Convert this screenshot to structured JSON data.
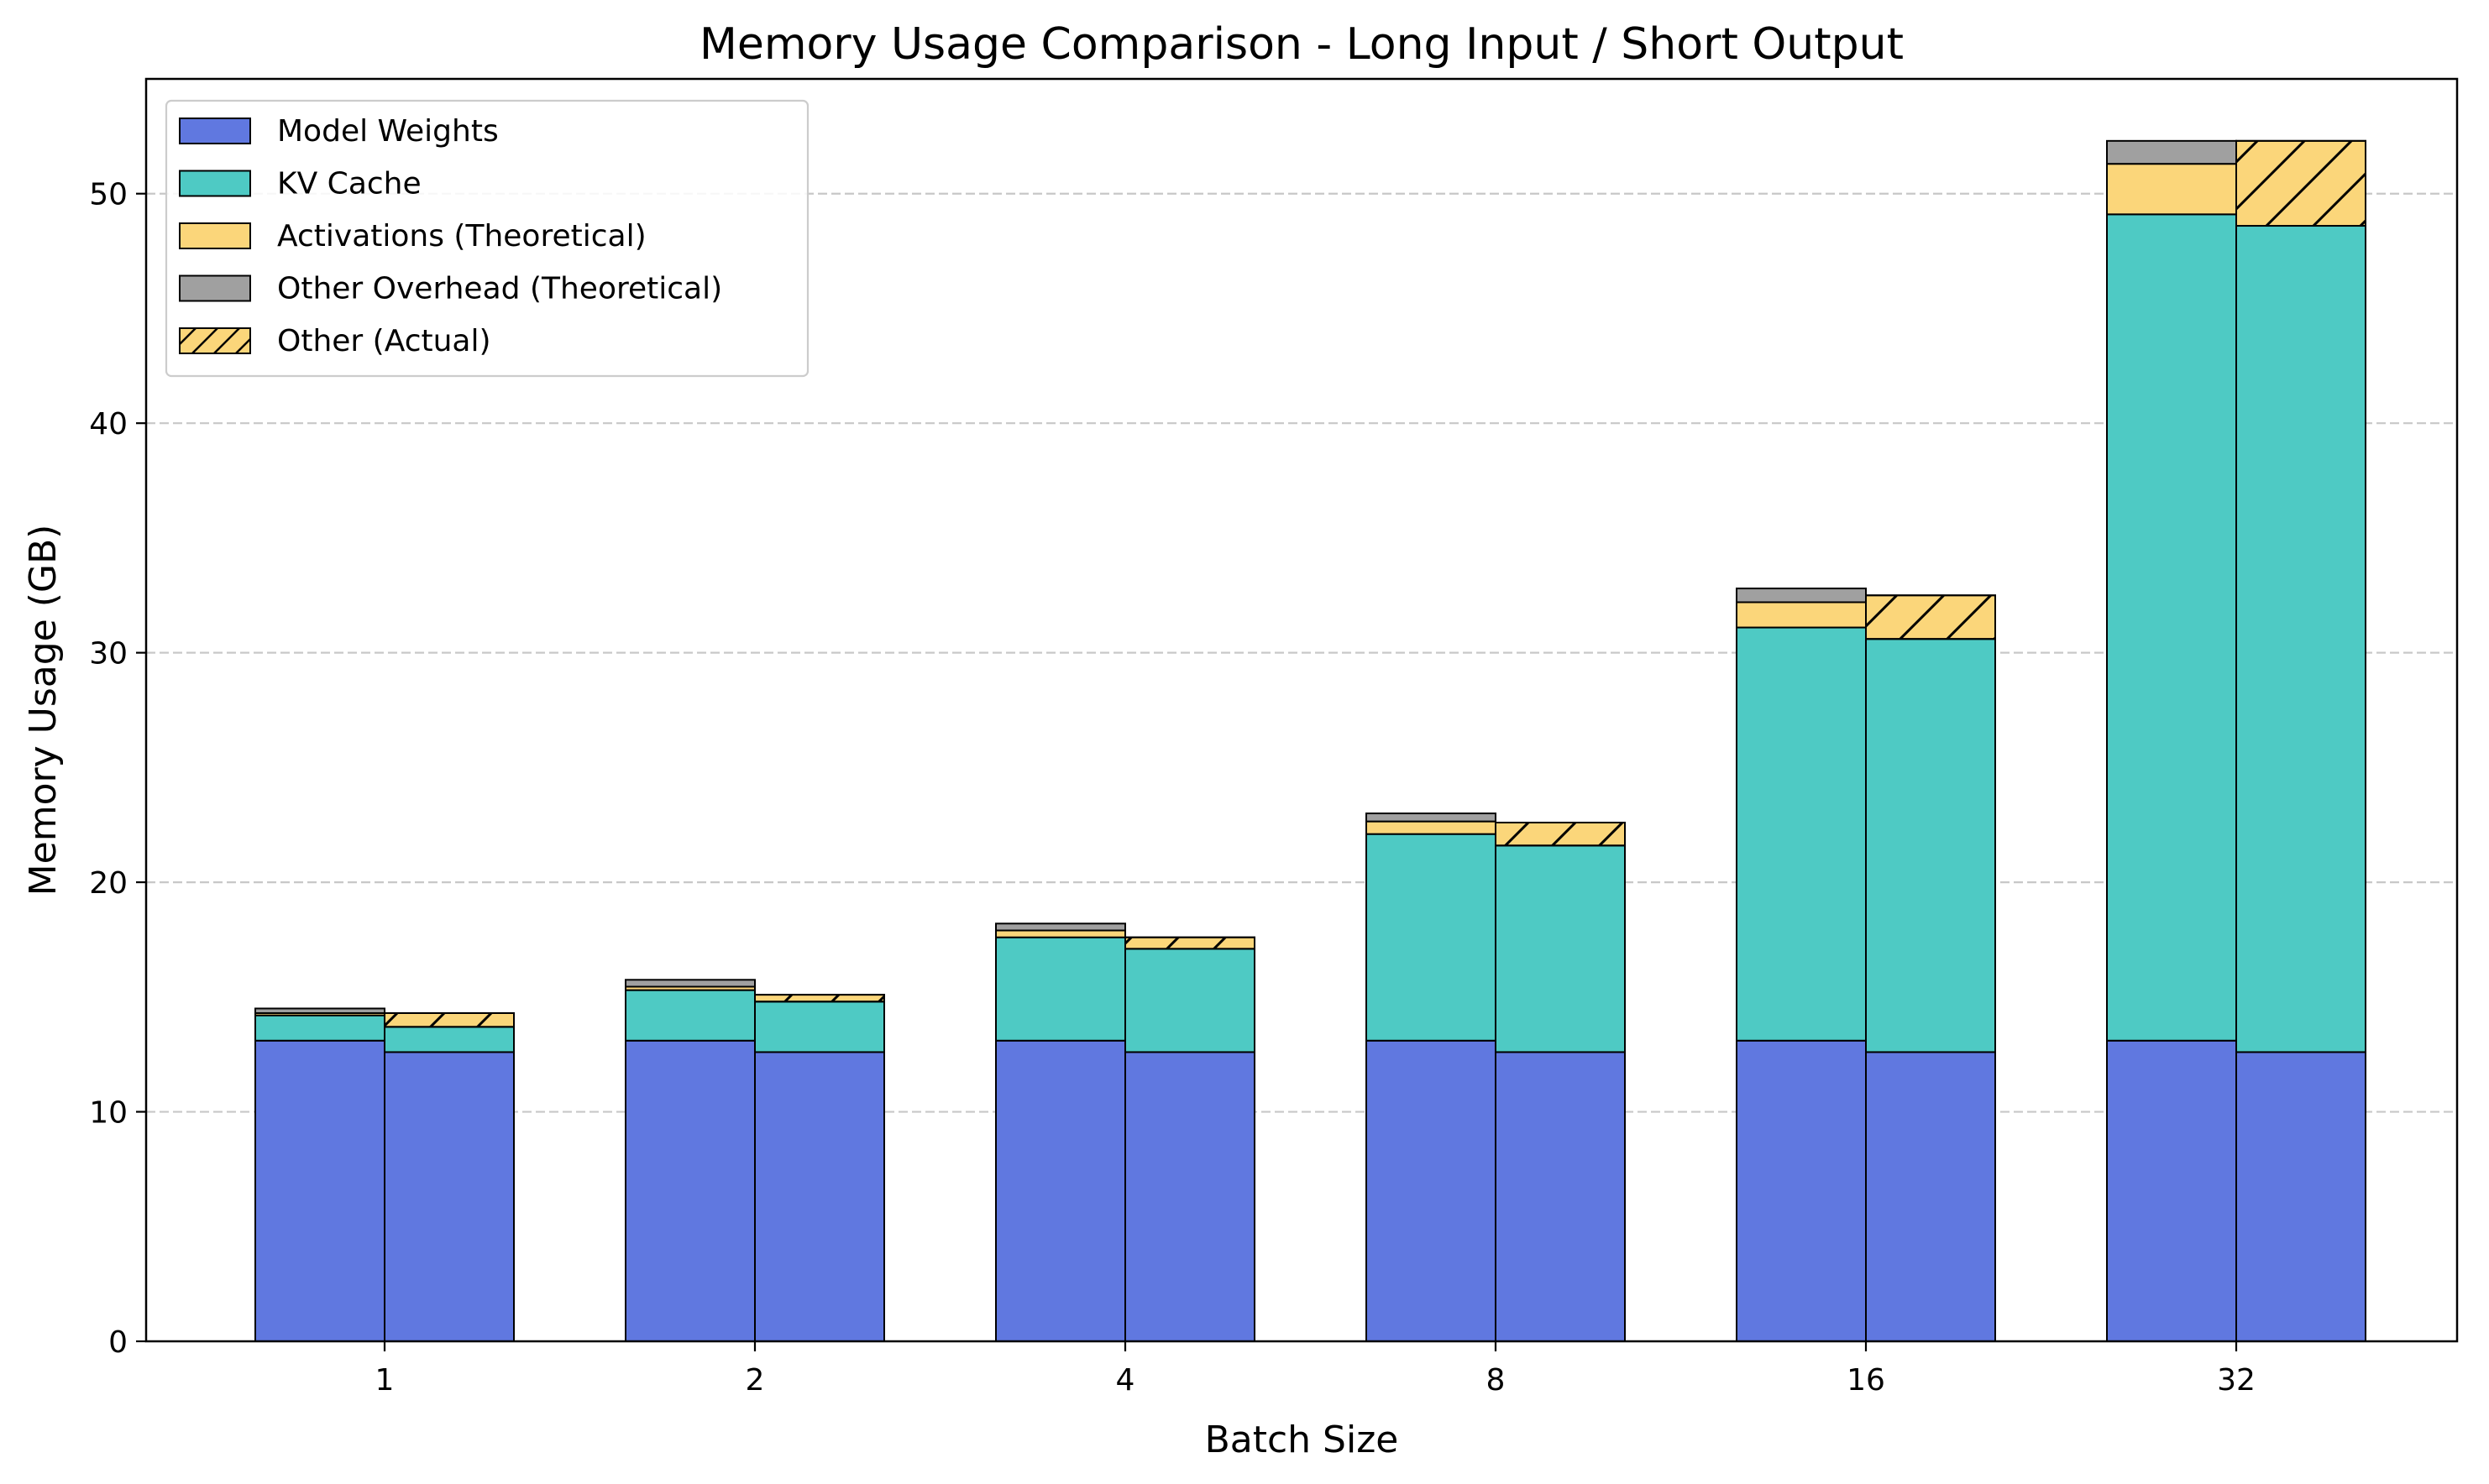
{
  "chart_data": {
    "type": "bar",
    "stacked": true,
    "grouped": true,
    "title": "Memory Usage Comparison - Long Input / Short Output",
    "xlabel": "Batch Size",
    "ylabel": "Memory Usage (GB)",
    "categories": [
      "1",
      "2",
      "4",
      "8",
      "16",
      "32"
    ],
    "ylim": [
      0,
      55
    ],
    "yticks": [
      0,
      10,
      20,
      30,
      40,
      50
    ],
    "grid": "y-dashed",
    "legend_position": "top-left",
    "legend": [
      {
        "label": "Model Weights",
        "color": "#6078E0",
        "hatch": false
      },
      {
        "label": "KV Cache",
        "color": "#4ECAC4",
        "hatch": false
      },
      {
        "label": "Activations (Theoretical)",
        "color": "#FBD67A",
        "hatch": false
      },
      {
        "label": "Other Overhead (Theoretical)",
        "color": "#A0A0A0",
        "hatch": false
      },
      {
        "label": "Other (Actual)",
        "color": "#FBD67A",
        "hatch": true
      }
    ],
    "theoretical": {
      "model_weights": [
        13.1,
        13.1,
        13.1,
        13.1,
        13.1,
        13.1
      ],
      "kv_cache": [
        1.1,
        2.2,
        4.5,
        9.0,
        18.0,
        36.0
      ],
      "activations": [
        0.1,
        0.15,
        0.3,
        0.55,
        1.1,
        2.2
      ],
      "other_overhead": [
        0.2,
        0.3,
        0.3,
        0.35,
        0.6,
        1.0
      ]
    },
    "actual": {
      "model_weights": [
        12.6,
        12.6,
        12.6,
        12.6,
        12.6,
        12.6
      ],
      "kv_cache": [
        1.1,
        2.2,
        4.5,
        9.0,
        18.0,
        36.0
      ],
      "other": [
        0.6,
        0.3,
        0.5,
        1.0,
        1.9,
        3.7
      ]
    }
  }
}
